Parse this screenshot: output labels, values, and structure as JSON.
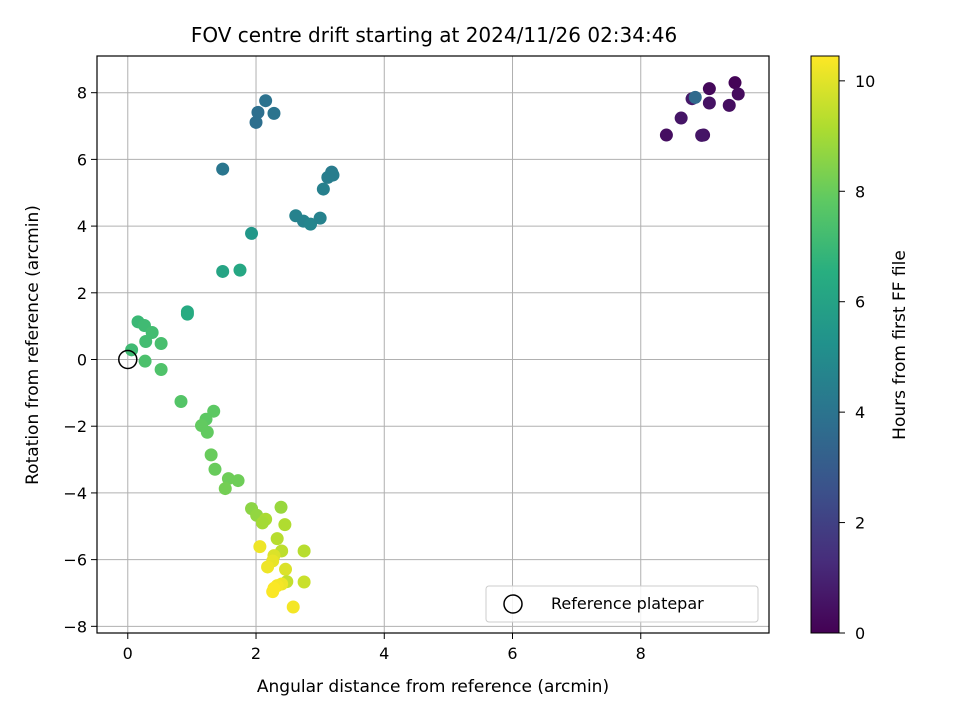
{
  "chart_data": {
    "type": "scatter",
    "title": "FOV centre drift starting at 2024/11/26 02:34:46",
    "xlabel": "Angular distance from reference (arcmin)",
    "ylabel": "Rotation from reference (arcmin)",
    "xlim": [
      -0.48,
      10.0
    ],
    "ylim": [
      -8.2,
      9.1
    ],
    "xticks": [
      0,
      2,
      4,
      6,
      8
    ],
    "yticks": [
      -8,
      -6,
      -4,
      -2,
      0,
      2,
      4,
      6,
      8
    ],
    "xtick_labels": [
      "0",
      "2",
      "4",
      "6",
      "8"
    ],
    "ytick_labels": [
      "−8",
      "−6",
      "−4",
      "−2",
      "0",
      "2",
      "4",
      "6",
      "8"
    ],
    "grid": true,
    "colormap": "viridis",
    "colorbar": {
      "label": "Hours from first FF file",
      "range": [
        0,
        10.45
      ],
      "ticks": [
        0,
        2,
        4,
        6,
        8,
        10
      ],
      "tick_labels": [
        "0",
        "2",
        "4",
        "6",
        "8",
        "10"
      ]
    },
    "legend": {
      "position": "lower right",
      "entries": [
        "Reference platepar"
      ]
    },
    "reference_point": {
      "x": 0,
      "y": 0
    },
    "points": [
      {
        "x": 9.47,
        "y": 8.3,
        "h": 0.1
      },
      {
        "x": 9.07,
        "y": 8.12,
        "h": 0.2
      },
      {
        "x": 9.52,
        "y": 7.96,
        "h": 0.3
      },
      {
        "x": 8.8,
        "y": 7.82,
        "h": 0.7
      },
      {
        "x": 9.07,
        "y": 7.69,
        "h": 0.5
      },
      {
        "x": 9.38,
        "y": 7.62,
        "h": 0.4
      },
      {
        "x": 8.63,
        "y": 7.24,
        "h": 0.6
      },
      {
        "x": 8.4,
        "y": 6.73,
        "h": 0.4
      },
      {
        "x": 8.98,
        "y": 6.73,
        "h": 0.5
      },
      {
        "x": 8.95,
        "y": 6.72,
        "h": 0.6
      },
      {
        "x": 8.85,
        "y": 7.86,
        "h": 3.6
      },
      {
        "x": 2.15,
        "y": 7.76,
        "h": 3.9
      },
      {
        "x": 2.03,
        "y": 7.41,
        "h": 3.8
      },
      {
        "x": 2.28,
        "y": 7.38,
        "h": 4.0
      },
      {
        "x": 2.0,
        "y": 7.11,
        "h": 3.8
      },
      {
        "x": 1.48,
        "y": 5.71,
        "h": 4.1
      },
      {
        "x": 3.18,
        "y": 5.62,
        "h": 4.3
      },
      {
        "x": 3.2,
        "y": 5.53,
        "h": 4.4
      },
      {
        "x": 3.12,
        "y": 5.46,
        "h": 4.4
      },
      {
        "x": 3.05,
        "y": 5.11,
        "h": 4.5
      },
      {
        "x": 2.62,
        "y": 4.31,
        "h": 4.6
      },
      {
        "x": 2.74,
        "y": 4.15,
        "h": 4.6
      },
      {
        "x": 2.85,
        "y": 4.06,
        "h": 4.7
      },
      {
        "x": 3.0,
        "y": 4.24,
        "h": 4.6
      },
      {
        "x": 1.93,
        "y": 3.78,
        "h": 5.5
      },
      {
        "x": 1.48,
        "y": 2.64,
        "h": 6.1
      },
      {
        "x": 1.75,
        "y": 2.68,
        "h": 6.2
      },
      {
        "x": 0.93,
        "y": 1.43,
        "h": 6.3
      },
      {
        "x": 0.93,
        "y": 1.36,
        "h": 6.4
      },
      {
        "x": 0.16,
        "y": 1.13,
        "h": 7.0
      },
      {
        "x": 0.26,
        "y": 1.02,
        "h": 7.1
      },
      {
        "x": 0.38,
        "y": 0.81,
        "h": 7.2
      },
      {
        "x": 0.28,
        "y": 0.54,
        "h": 7.2
      },
      {
        "x": 0.52,
        "y": 0.48,
        "h": 7.3
      },
      {
        "x": 0.06,
        "y": 0.29,
        "h": 7.1
      },
      {
        "x": 0.27,
        "y": -0.05,
        "h": 7.4
      },
      {
        "x": 0.52,
        "y": -0.3,
        "h": 7.5
      },
      {
        "x": 0.83,
        "y": -1.26,
        "h": 7.6
      },
      {
        "x": 1.34,
        "y": -1.55,
        "h": 7.8
      },
      {
        "x": 1.22,
        "y": -1.79,
        "h": 7.8
      },
      {
        "x": 1.15,
        "y": -1.98,
        "h": 7.9
      },
      {
        "x": 1.24,
        "y": -2.18,
        "h": 7.9
      },
      {
        "x": 1.3,
        "y": -2.86,
        "h": 8.0
      },
      {
        "x": 1.36,
        "y": -3.29,
        "h": 8.0
      },
      {
        "x": 1.57,
        "y": -3.57,
        "h": 8.1
      },
      {
        "x": 1.72,
        "y": -3.63,
        "h": 8.1
      },
      {
        "x": 1.52,
        "y": -3.87,
        "h": 8.2
      },
      {
        "x": 1.93,
        "y": -4.47,
        "h": 8.6
      },
      {
        "x": 2.01,
        "y": -4.67,
        "h": 8.7
      },
      {
        "x": 2.39,
        "y": -4.43,
        "h": 8.8
      },
      {
        "x": 2.15,
        "y": -4.79,
        "h": 9.1
      },
      {
        "x": 2.1,
        "y": -4.9,
        "h": 9.0
      },
      {
        "x": 2.45,
        "y": -4.95,
        "h": 9.2
      },
      {
        "x": 2.33,
        "y": -5.37,
        "h": 9.3
      },
      {
        "x": 2.06,
        "y": -5.61,
        "h": 10.2
      },
      {
        "x": 2.4,
        "y": -5.74,
        "h": 9.4
      },
      {
        "x": 2.75,
        "y": -5.74,
        "h": 9.3
      },
      {
        "x": 2.28,
        "y": -5.88,
        "h": 9.9
      },
      {
        "x": 2.26,
        "y": -6.04,
        "h": 10.1
      },
      {
        "x": 2.18,
        "y": -6.22,
        "h": 10.2
      },
      {
        "x": 2.46,
        "y": -6.29,
        "h": 9.9
      },
      {
        "x": 2.48,
        "y": -6.66,
        "h": 9.5
      },
      {
        "x": 2.75,
        "y": -6.67,
        "h": 9.6
      },
      {
        "x": 2.4,
        "y": -6.73,
        "h": 10.2
      },
      {
        "x": 2.33,
        "y": -6.78,
        "h": 10.3
      },
      {
        "x": 2.28,
        "y": -6.86,
        "h": 10.4
      },
      {
        "x": 2.26,
        "y": -6.96,
        "h": 10.4
      },
      {
        "x": 2.58,
        "y": -7.42,
        "h": 10.3
      }
    ]
  }
}
